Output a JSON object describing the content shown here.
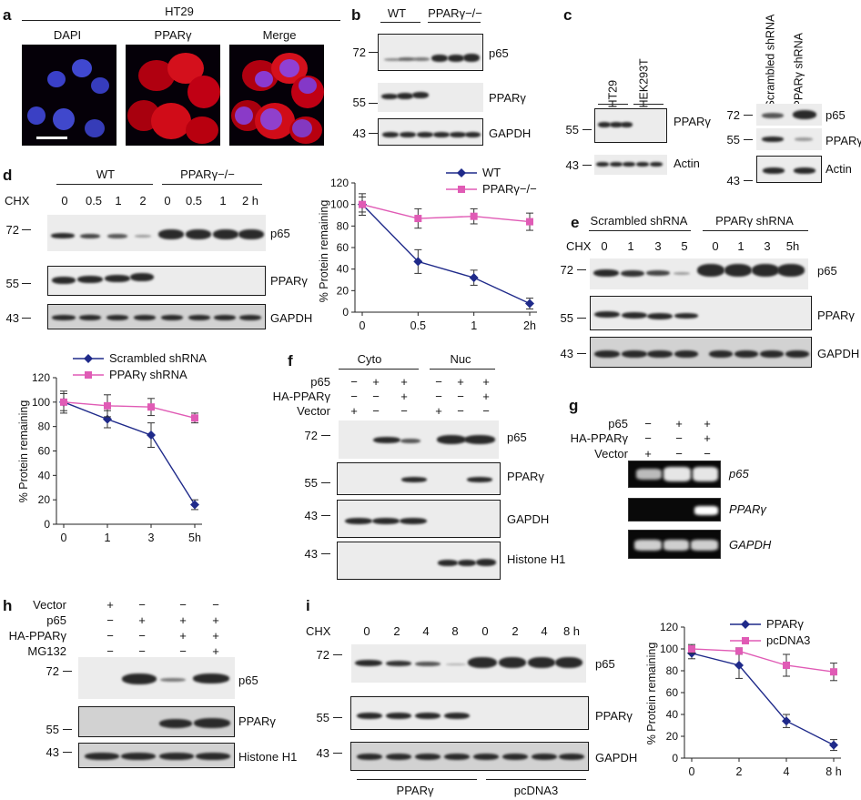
{
  "panels": {
    "a": "a",
    "b": "b",
    "c": "c",
    "d": "d",
    "e": "e",
    "f": "f",
    "g": "g",
    "h": "h",
    "i": "i"
  },
  "panel_a": {
    "cell_line": "HT29",
    "labels": [
      "DAPI",
      "PPARγ",
      "Merge"
    ]
  },
  "panel_b": {
    "groups": [
      "WT",
      "PPARγ−/−"
    ],
    "mw": [
      "72",
      "55",
      "43"
    ],
    "proteins": [
      "p65",
      "PPARγ",
      "GAPDH"
    ]
  },
  "panel_c": {
    "lanes_left": [
      "HT29",
      "HEK293T"
    ],
    "lanes_right": [
      "Scrambled shRNA",
      "PPARγ shRNA"
    ],
    "mw_left": [
      "55",
      "43"
    ],
    "mw_right": [
      "72",
      "55",
      "43"
    ],
    "proteins_left": [
      "PPARγ",
      "Actin"
    ],
    "proteins_right": [
      "p65",
      "PPARγ",
      "Actin"
    ]
  },
  "panel_d": {
    "groups": [
      "WT",
      "PPARγ−/−"
    ],
    "chx_label": "CHX",
    "times": [
      "0",
      "0.5",
      "1",
      "2",
      "0",
      "0.5",
      "1",
      "2 h"
    ],
    "mw": [
      "72",
      "55",
      "43"
    ],
    "proteins": [
      "p65",
      "PPARγ",
      "GAPDH"
    ]
  },
  "panel_e": {
    "groups": [
      "Scrambled shRNA",
      "PPARγ shRNA"
    ],
    "chx_label": "CHX",
    "times": [
      "0",
      "1",
      "3",
      "5",
      "0",
      "1",
      "3",
      "5h"
    ],
    "mw": [
      "72",
      "55",
      "43"
    ],
    "proteins": [
      "p65",
      "PPARγ",
      "GAPDH"
    ]
  },
  "panel_f": {
    "fractions": [
      "Cyto",
      "Nuc"
    ],
    "rows": [
      "p65",
      "HA-PPARγ",
      "Vector"
    ],
    "signs": [
      [
        "−",
        "+",
        "+",
        "−",
        "+",
        "+"
      ],
      [
        "−",
        "−",
        "+",
        "−",
        "−",
        "+"
      ],
      [
        "+",
        "−",
        "−",
        "+",
        "−",
        "−"
      ]
    ],
    "mw": [
      "72",
      "55",
      "43",
      "43"
    ],
    "proteins": [
      "p65",
      "PPARγ",
      "GAPDH",
      "Histone H1"
    ]
  },
  "panel_g": {
    "rows": [
      "p65",
      "HA-PPARγ",
      "Vector"
    ],
    "signs": [
      [
        "−",
        "+",
        "+"
      ],
      [
        "−",
        "−",
        "+"
      ],
      [
        "+",
        "−",
        "−"
      ]
    ],
    "genes": [
      "p65",
      "PPARγ",
      "GAPDH"
    ]
  },
  "panel_h": {
    "rows": [
      "Vector",
      "p65",
      "HA-PPARγ",
      "MG132"
    ],
    "signs": [
      [
        "+",
        "−",
        "−",
        "−"
      ],
      [
        "−",
        "+",
        "+",
        "+"
      ],
      [
        "−",
        "−",
        "+",
        "+"
      ],
      [
        "−",
        "−",
        "−",
        "+"
      ]
    ],
    "mw": [
      "72",
      "55",
      "43"
    ],
    "proteins": [
      "p65",
      "PPARγ",
      "Histone H1"
    ]
  },
  "panel_i": {
    "chx_label": "CHX",
    "times": [
      "0",
      "2",
      "4",
      "8",
      "0",
      "2",
      "4",
      "8 h"
    ],
    "groups": [
      "PPARγ",
      "pcDNA3"
    ],
    "mw": [
      "72",
      "55",
      "43"
    ],
    "proteins": [
      "p65",
      "PPARγ",
      "GAPDH"
    ]
  },
  "chart_data": [
    {
      "id": "d",
      "type": "line",
      "x": [
        "0",
        "0.5",
        "1",
        "2h"
      ],
      "series": [
        {
          "name": "WT",
          "values": [
            100,
            47,
            32,
            8
          ],
          "err": [
            10,
            11,
            7,
            5
          ],
          "color": "#1f2a8a",
          "marker": "diamond"
        },
        {
          "name": "PPARγ−/−",
          "values": [
            100,
            87,
            89,
            84
          ],
          "err": [
            7,
            9,
            7,
            8
          ],
          "color": "#e05bb5",
          "marker": "square"
        }
      ],
      "ylabel": "% Protein remaining",
      "ylim": [
        0,
        120
      ],
      "yticks": [
        "0",
        "20",
        "40",
        "60",
        "80",
        "100",
        "120"
      ],
      "legend": "top"
    },
    {
      "id": "e_plot",
      "type": "line",
      "x": [
        "0",
        "1",
        "3",
        "5h"
      ],
      "series": [
        {
          "name": "Scrambled shRNA",
          "values": [
            100,
            86,
            73,
            16
          ],
          "err": [
            9,
            7,
            10,
            4
          ],
          "color": "#1f2a8a",
          "marker": "diamond"
        },
        {
          "name": "PPARγ shRNA",
          "values": [
            100,
            97,
            96,
            87
          ],
          "err": [
            7,
            9,
            7,
            4
          ],
          "color": "#e05bb5",
          "marker": "square"
        }
      ],
      "ylabel": "% Protein remaining",
      "ylim": [
        0,
        120
      ],
      "yticks": [
        "0",
        "20",
        "40",
        "60",
        "80",
        "100",
        "120"
      ],
      "legend": "top"
    },
    {
      "id": "i",
      "type": "line",
      "x": [
        "0",
        "2",
        "4",
        "8 h"
      ],
      "series": [
        {
          "name": "PPARγ",
          "values": [
            96,
            85,
            34,
            12
          ],
          "err": [
            5,
            12,
            6,
            5
          ],
          "color": "#1f2a8a",
          "marker": "diamond"
        },
        {
          "name": "pcDNA3",
          "values": [
            100,
            98,
            85,
            79
          ],
          "err": [
            4,
            3,
            10,
            8
          ],
          "color": "#e05bb5",
          "marker": "square"
        }
      ],
      "ylabel": "% Protein remaining",
      "ylim": [
        0,
        120
      ],
      "yticks": [
        "0",
        "20",
        "40",
        "60",
        "80",
        "100",
        "120"
      ],
      "legend": "top"
    }
  ]
}
